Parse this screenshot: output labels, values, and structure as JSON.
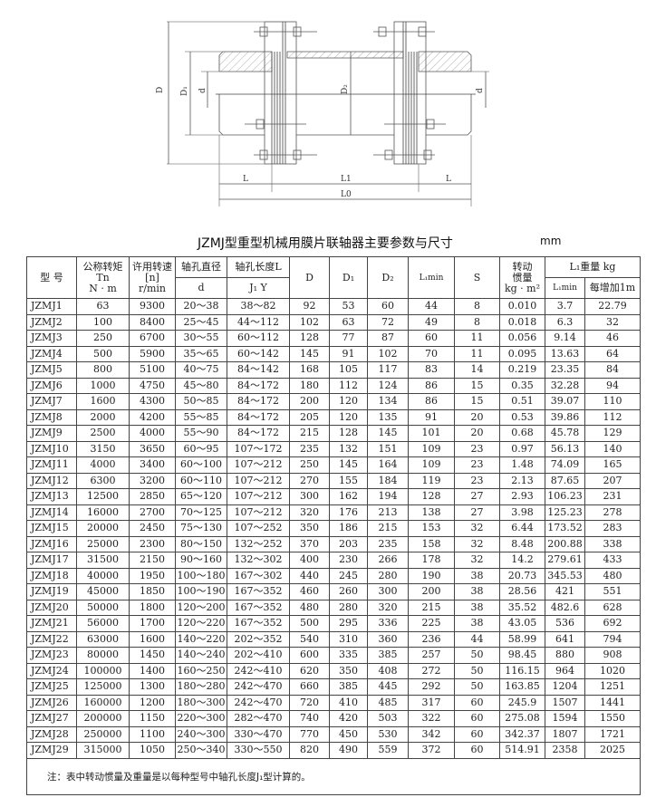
{
  "drawing": {
    "labels": {
      "D": "D",
      "D1": "D₁",
      "D2": "D₂",
      "d_left": "d",
      "d_right": "d",
      "L_left": "L",
      "L1": "L1",
      "L_right": "L",
      "L0": "L0"
    }
  },
  "title": "JZMJ型重型机械用膜片联轴器主要参数与尺寸",
  "unit": "mm",
  "header": {
    "model": "型 号",
    "torque": [
      "公称转矩",
      "Tn",
      "N · m"
    ],
    "speed": [
      "许用转速",
      "[n]",
      "r/min"
    ],
    "bore_dia": "轴孔直径",
    "bore_dia_sub": "d",
    "bore_len": "轴孔长度L",
    "bore_len_sub": "J₁  Y",
    "D": "D",
    "D1": "D₁",
    "D2": "D₂",
    "Lmin": "L₁min",
    "S": "S",
    "inertia": [
      "转动",
      "惯量",
      "kg · m²"
    ],
    "weight": "L₁重量 kg",
    "weight_lmin": "L₁min",
    "weight_per_m": "每增加1m"
  },
  "rows": [
    [
      "JZMJ1",
      "63",
      "9300",
      "20～38",
      "38～82",
      "92",
      "53",
      "60",
      "44",
      "8",
      "0.010",
      "3.7",
      "22.79"
    ],
    [
      "JZMJ2",
      "100",
      "8400",
      "25～45",
      "44～112",
      "102",
      "63",
      "72",
      "49",
      "8",
      "0.018",
      "6.3",
      "32"
    ],
    [
      "JZMJ3",
      "250",
      "6700",
      "30～55",
      "60～112",
      "128",
      "77",
      "87",
      "60",
      "11",
      "0.056",
      "9.14",
      "46"
    ],
    [
      "JZMJ4",
      "500",
      "5900",
      "35～65",
      "60～142",
      "145",
      "91",
      "102",
      "70",
      "11",
      "0.095",
      "13.63",
      "64"
    ],
    [
      "JZMJ5",
      "800",
      "5100",
      "40～75",
      "84～142",
      "168",
      "105",
      "117",
      "83",
      "14",
      "0.219",
      "23.35",
      "84"
    ],
    [
      "JZMJ6",
      "1000",
      "4750",
      "45～80",
      "84～172",
      "180",
      "112",
      "124",
      "86",
      "15",
      "0.35",
      "32.28",
      "94"
    ],
    [
      "JZMJ7",
      "1600",
      "4300",
      "50～85",
      "84～172",
      "200",
      "120",
      "134",
      "86",
      "15",
      "0.51",
      "39.07",
      "110"
    ],
    [
      "JZMJ8",
      "2000",
      "4200",
      "55～85",
      "84～172",
      "205",
      "120",
      "135",
      "91",
      "20",
      "0.53",
      "39.86",
      "112"
    ],
    [
      "JZMJ9",
      "2500",
      "4000",
      "55～90",
      "84～172",
      "215",
      "128",
      "145",
      "101",
      "20",
      "0.68",
      "45.78",
      "129"
    ],
    [
      "JZMJ10",
      "3150",
      "3650",
      "60～95",
      "107～172",
      "235",
      "132",
      "151",
      "109",
      "23",
      "0.97",
      "56.13",
      "140"
    ],
    [
      "JZMJ11",
      "4000",
      "3400",
      "60～100",
      "107～212",
      "250",
      "145",
      "164",
      "109",
      "23",
      "1.48",
      "74.09",
      "165"
    ],
    [
      "JZMJ12",
      "6300",
      "3200",
      "60～110",
      "107～212",
      "270",
      "155",
      "184",
      "119",
      "23",
      "2.13",
      "87.65",
      "207"
    ],
    [
      "JZMJ13",
      "12500",
      "2850",
      "65～120",
      "107～212",
      "300",
      "162",
      "194",
      "128",
      "27",
      "2.93",
      "106.23",
      "231"
    ],
    [
      "JZMJ14",
      "16000",
      "2700",
      "70～125",
      "107～212",
      "320",
      "176",
      "213",
      "138",
      "27",
      "3.98",
      "125.23",
      "278"
    ],
    [
      "JZMJ15",
      "20000",
      "2450",
      "75～130",
      "107～252",
      "350",
      "186",
      "215",
      "153",
      "32",
      "6.44",
      "173.52",
      "283"
    ],
    [
      "JZMJ16",
      "25000",
      "2300",
      "80～150",
      "132～252",
      "370",
      "203",
      "235",
      "158",
      "32",
      "8.48",
      "200.88",
      "338"
    ],
    [
      "JZMJ17",
      "31500",
      "2150",
      "90～160",
      "132～302",
      "400",
      "230",
      "266",
      "178",
      "32",
      "14.2",
      "279.61",
      "433"
    ],
    [
      "JZMJ18",
      "40000",
      "1950",
      "100～180",
      "167～302",
      "440",
      "245",
      "280",
      "190",
      "38",
      "20.73",
      "345.53",
      "480"
    ],
    [
      "JZMJ19",
      "45000",
      "1850",
      "100～190",
      "167～352",
      "460",
      "260",
      "300",
      "200",
      "38",
      "28.56",
      "421",
      "551"
    ],
    [
      "JZMJ20",
      "50000",
      "1800",
      "120～200",
      "167～352",
      "480",
      "280",
      "320",
      "215",
      "38",
      "35.52",
      "482.6",
      "628"
    ],
    [
      "JZMJ21",
      "56000",
      "1700",
      "120～220",
      "167～352",
      "500",
      "295",
      "336",
      "225",
      "38",
      "43.05",
      "536",
      "692"
    ],
    [
      "JZMJ22",
      "63000",
      "1600",
      "140～220",
      "202～352",
      "540",
      "310",
      "360",
      "236",
      "44",
      "58.99",
      "641",
      "794"
    ],
    [
      "JZMJ23",
      "80000",
      "1450",
      "140～240",
      "202～410",
      "600",
      "335",
      "385",
      "257",
      "50",
      "98.45",
      "880",
      "908"
    ],
    [
      "JZMJ24",
      "100000",
      "1400",
      "160～250",
      "242～410",
      "620",
      "350",
      "408",
      "272",
      "50",
      "116.15",
      "964",
      "1020"
    ],
    [
      "JZMJ25",
      "125000",
      "1300",
      "180～280",
      "242～470",
      "660",
      "385",
      "445",
      "292",
      "50",
      "163.85",
      "1204",
      "1251"
    ],
    [
      "JZMJ26",
      "160000",
      "1200",
      "180～300",
      "242～470",
      "720",
      "410",
      "485",
      "317",
      "60",
      "245.9",
      "1507",
      "1441"
    ],
    [
      "JZMJ27",
      "200000",
      "1150",
      "220～300",
      "282～470",
      "740",
      "420",
      "503",
      "322",
      "60",
      "275.08",
      "1594",
      "1550"
    ],
    [
      "JZMJ28",
      "250000",
      "1100",
      "240～300",
      "330～470",
      "770",
      "450",
      "530",
      "342",
      "60",
      "342.37",
      "1807",
      "1721"
    ],
    [
      "JZMJ29",
      "315000",
      "1050",
      "250～340",
      "330～550",
      "820",
      "490",
      "559",
      "372",
      "60",
      "514.91",
      "2358",
      "2025"
    ]
  ],
  "note": "注：表中转动惯量及重量是以每种型号中轴孔长度J₁型计算的。"
}
